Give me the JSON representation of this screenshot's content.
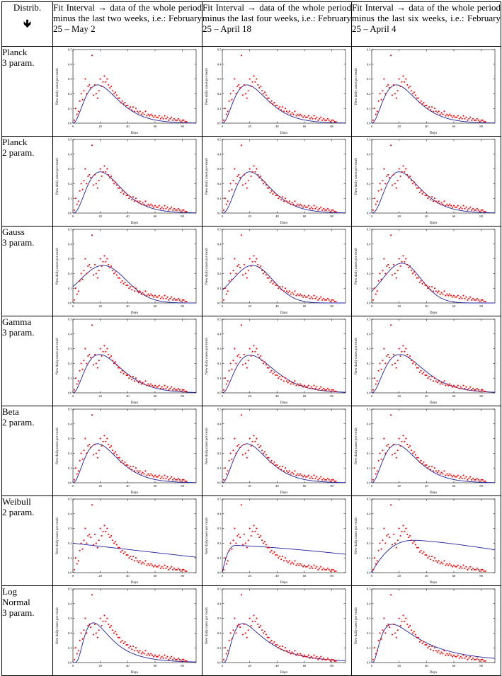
{
  "table": {
    "dist_header": "Distrib.",
    "arrow_icon": "down-arrow-icon",
    "arrow_glyph": "🡻",
    "col_headers": [
      "Fit Interval → data of the whole period minus the last  two weeks, i.e.: February 25 – May 2",
      "Fit Interval → data of the whole period minus the last four weeks, i.e.: February 25 – April 18",
      "Fit Interval → data of the whole period minus the last six weeks, i.e.: February 25 – April 4"
    ],
    "row_labels": [
      [
        "Planck",
        "3 param."
      ],
      [
        "Planck",
        "2 param."
      ],
      [
        "Gauss",
        "3 param."
      ],
      [
        "Gamma",
        "3 param."
      ],
      [
        "Beta",
        "2 param."
      ],
      [
        "Weibull",
        "2 param."
      ],
      [
        "Log",
        "Normal",
        "3 param."
      ]
    ]
  },
  "chart_data": {
    "type": "scatter",
    "xlabel": "Days",
    "ylabel": "New daily cases per swab",
    "xlim": [
      0,
      90
    ],
    "ylim": [
      0,
      0.5
    ],
    "xticks": [
      0,
      20,
      40,
      60,
      80
    ],
    "yticks": [
      0,
      0.1,
      0.2,
      0.3,
      0.4,
      0.5
    ],
    "point_color": "#ff0000",
    "curve_color": "#2020a0",
    "observations": {
      "x": [
        1,
        2,
        3,
        4,
        5,
        6,
        7,
        8,
        9,
        10,
        11,
        12,
        13,
        14,
        15,
        16,
        17,
        18,
        19,
        20,
        21,
        22,
        23,
        24,
        25,
        26,
        27,
        28,
        29,
        30,
        31,
        32,
        33,
        34,
        35,
        36,
        37,
        38,
        39,
        40,
        41,
        42,
        43,
        44,
        45,
        46,
        47,
        48,
        49,
        50,
        51,
        52,
        53,
        54,
        55,
        56,
        57,
        58,
        59,
        60,
        61,
        62,
        63,
        64,
        65,
        66,
        67,
        68,
        69,
        70,
        71,
        72,
        73,
        74,
        75,
        76,
        77,
        78,
        79,
        80,
        81,
        82,
        83
      ],
      "y": [
        0.02,
        0.1,
        0.06,
        0.08,
        0.15,
        0.2,
        0.16,
        0.22,
        0.3,
        0.2,
        0.25,
        0.26,
        0.24,
        0.46,
        0.19,
        0.26,
        0.2,
        0.17,
        0.22,
        0.3,
        0.25,
        0.28,
        0.32,
        0.28,
        0.3,
        0.26,
        0.24,
        0.25,
        0.22,
        0.2,
        0.21,
        0.19,
        0.17,
        0.17,
        0.14,
        0.15,
        0.13,
        0.14,
        0.12,
        0.12,
        0.1,
        0.11,
        0.09,
        0.11,
        0.08,
        0.1,
        0.08,
        0.07,
        0.08,
        0.06,
        0.07,
        0.06,
        0.08,
        0.05,
        0.06,
        0.05,
        0.06,
        0.05,
        0.04,
        0.05,
        0.04,
        0.04,
        0.05,
        0.03,
        0.04,
        0.03,
        0.05,
        0.03,
        0.04,
        0.02,
        0.03,
        0.04,
        0.02,
        0.03,
        0.02,
        0.02,
        0.03,
        0.02,
        0.01,
        0.02,
        0.02,
        0.01,
        0.01
      ]
    },
    "fitted_curves": [
      {
        "distribution": "Planck 3 param.",
        "panels": [
          {
            "fit_interval": "February 25 – May 2",
            "peak_x": 18,
            "peak_y": 0.26,
            "tail": "fast"
          },
          {
            "fit_interval": "February 25 – April 18",
            "peak_x": 18,
            "peak_y": 0.26,
            "tail": "fast"
          },
          {
            "fit_interval": "February 25 – April 4",
            "peak_x": 18,
            "peak_y": 0.26,
            "tail": "fast"
          }
        ]
      },
      {
        "distribution": "Planck 2 param.",
        "panels": [
          {
            "fit_interval": "February 25 – May 2",
            "peak_x": 20,
            "peak_y": 0.28
          },
          {
            "fit_interval": "February 25 – April 18",
            "peak_x": 20,
            "peak_y": 0.28
          },
          {
            "fit_interval": "February 25 – April 4",
            "peak_x": 20,
            "peak_y": 0.28
          }
        ]
      },
      {
        "distribution": "Gauss 3 param.",
        "panels": [
          {
            "fit_interval": "February 25 – May 2",
            "mean": 22,
            "peak_y": 0.255,
            "sigma": 17
          },
          {
            "fit_interval": "February 25 – April 18",
            "mean": 22,
            "peak_y": 0.255,
            "sigma": 15
          },
          {
            "fit_interval": "February 25 – April 4",
            "mean": 22,
            "peak_y": 0.27,
            "sigma": 14
          }
        ]
      },
      {
        "distribution": "Gamma 3 param.",
        "panels": [
          {
            "fit_interval": "February 25 – May 2",
            "peak_x": 19,
            "peak_y": 0.26
          },
          {
            "fit_interval": "February 25 – April 18",
            "peak_x": 20,
            "peak_y": 0.255
          },
          {
            "fit_interval": "February 25 – April 4",
            "peak_x": 20,
            "peak_y": 0.26
          }
        ]
      },
      {
        "distribution": "Beta 2 param.",
        "panels": [
          {
            "fit_interval": "February 25 – May 2",
            "peak_x": 18,
            "peak_y": 0.265
          },
          {
            "fit_interval": "February 25 – April 18",
            "peak_x": 18,
            "peak_y": 0.265
          },
          {
            "fit_interval": "February 25 – April 4",
            "peak_x": 18,
            "peak_y": 0.26
          }
        ]
      },
      {
        "distribution": "Weibull 2 param.",
        "panels": [
          {
            "fit_interval": "February 25 – May 2",
            "y_at_0": 0.2,
            "y_at_90": 0.105
          },
          {
            "fit_interval": "February 25 – April 18",
            "peak_x": 10,
            "peak_y": 0.185,
            "y_at_90": 0.125
          },
          {
            "fit_interval": "February 25 – April 4",
            "peak_x": 32,
            "peak_y": 0.22,
            "y_at_90": 0.155
          }
        ]
      },
      {
        "distribution": "Log Normal 3 param.",
        "panels": [
          {
            "fit_interval": "February 25 – May 2",
            "peak_x": 15,
            "peak_y": 0.27,
            "y_at_90": 0.02
          },
          {
            "fit_interval": "February 25 – April 18",
            "peak_x": 15,
            "peak_y": 0.265,
            "y_at_90": 0.03
          },
          {
            "fit_interval": "February 25 – April 4",
            "peak_x": 15,
            "peak_y": 0.26,
            "y_at_90": 0.045
          }
        ]
      }
    ]
  }
}
